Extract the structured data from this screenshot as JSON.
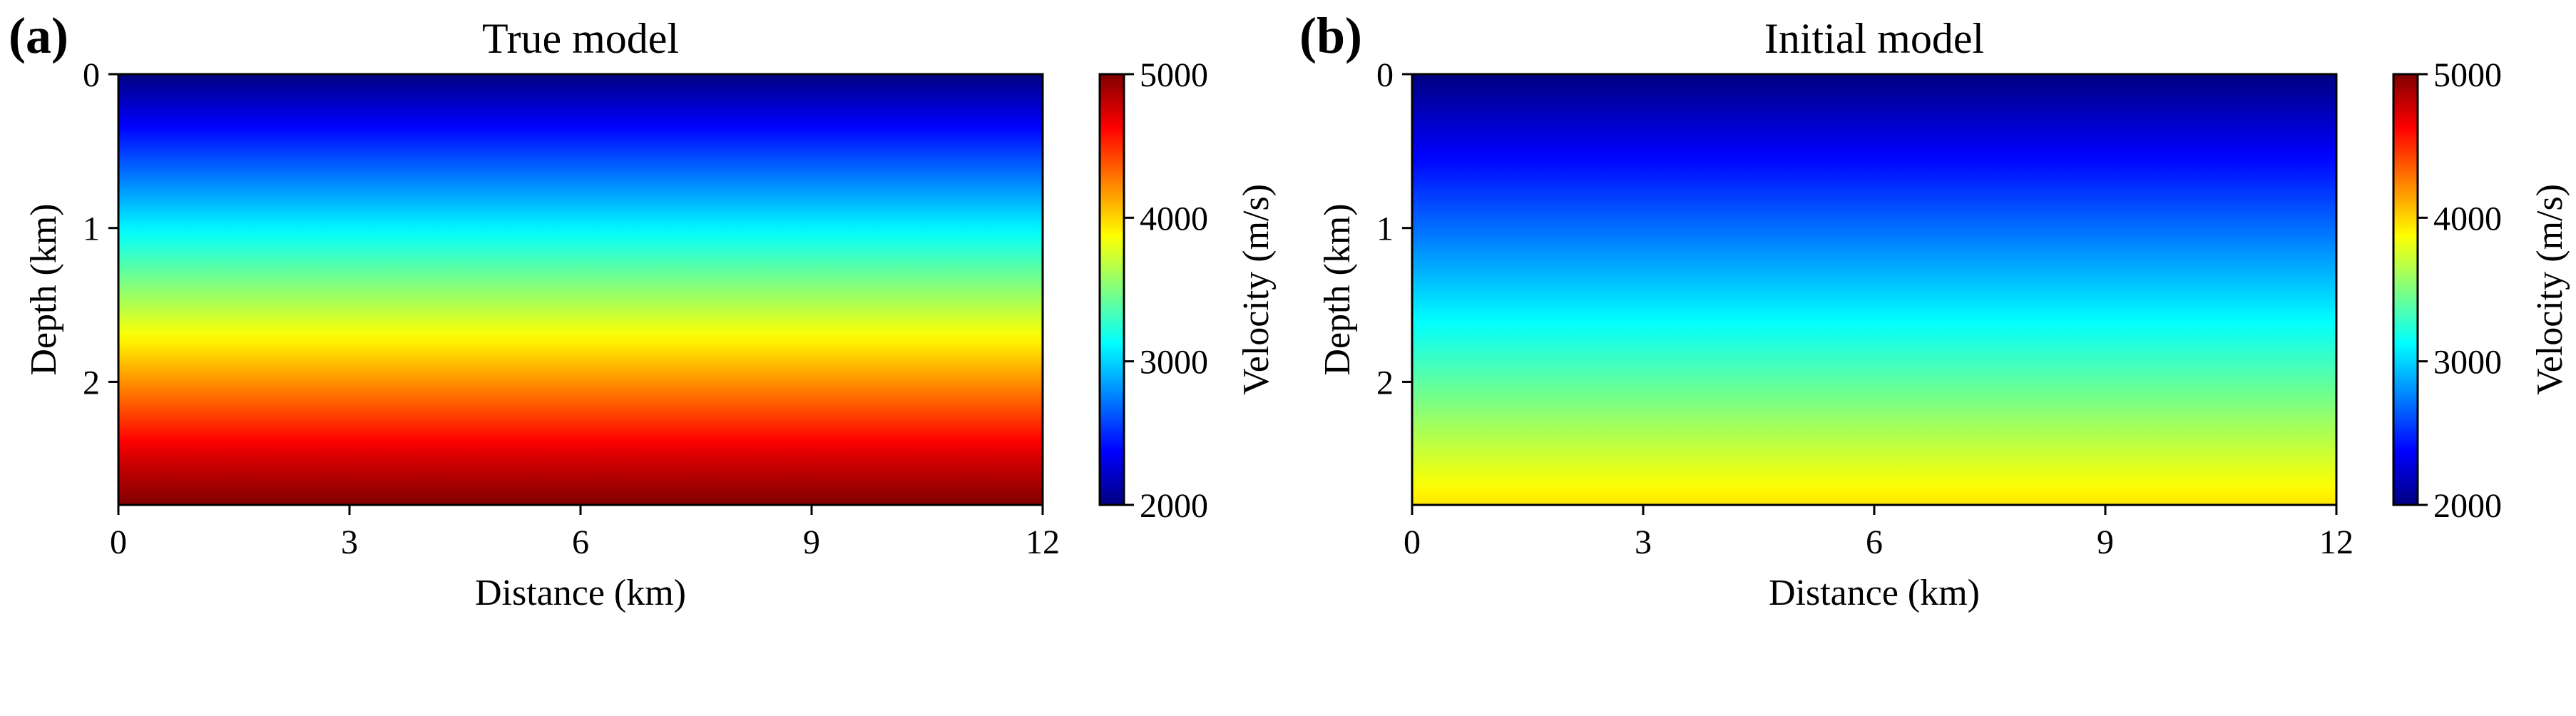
{
  "figure": {
    "panels": [
      "a",
      "b"
    ]
  },
  "chart_data": [
    {
      "id": "a",
      "type": "heatmap",
      "panel_label": "(a)",
      "title": "True model",
      "xlabel": "Distance (km)",
      "ylabel": "Depth (km)",
      "xlim": [
        0,
        12
      ],
      "ylim": [
        0,
        2.8
      ],
      "x_ticks": [
        0,
        3,
        6,
        9,
        12
      ],
      "y_ticks": [
        0,
        1,
        2
      ],
      "colormap": "jet",
      "velocity_profile": {
        "depth": [
          0,
          0.5,
          1.0,
          1.5,
          2.0,
          2.5,
          2.8
        ],
        "velocity": [
          2000,
          2550,
          3100,
          3650,
          4200,
          4750,
          5000
        ]
      },
      "colorbar": {
        "label": "Velocity (m/s)",
        "range": [
          2000,
          5000
        ],
        "ticks": [
          2000,
          3000,
          4000,
          5000
        ]
      }
    },
    {
      "id": "b",
      "type": "heatmap",
      "panel_label": "(b)",
      "title": "Initial model",
      "xlabel": "Distance (km)",
      "ylabel": "Depth (km)",
      "xlim": [
        0,
        12
      ],
      "ylim": [
        0,
        2.8
      ],
      "x_ticks": [
        0,
        3,
        6,
        9,
        12
      ],
      "y_ticks": [
        0,
        1,
        2
      ],
      "colormap": "jet",
      "velocity_profile": {
        "depth": [
          0,
          0.5,
          1.0,
          1.5,
          2.0,
          2.5,
          2.8
        ],
        "velocity": [
          2000,
          2350,
          2700,
          3050,
          3400,
          3750,
          3950
        ]
      },
      "colorbar": {
        "label": "Velocity (m/s)",
        "range": [
          2000,
          5000
        ],
        "ticks": [
          2000,
          3000,
          4000,
          5000
        ]
      }
    }
  ]
}
